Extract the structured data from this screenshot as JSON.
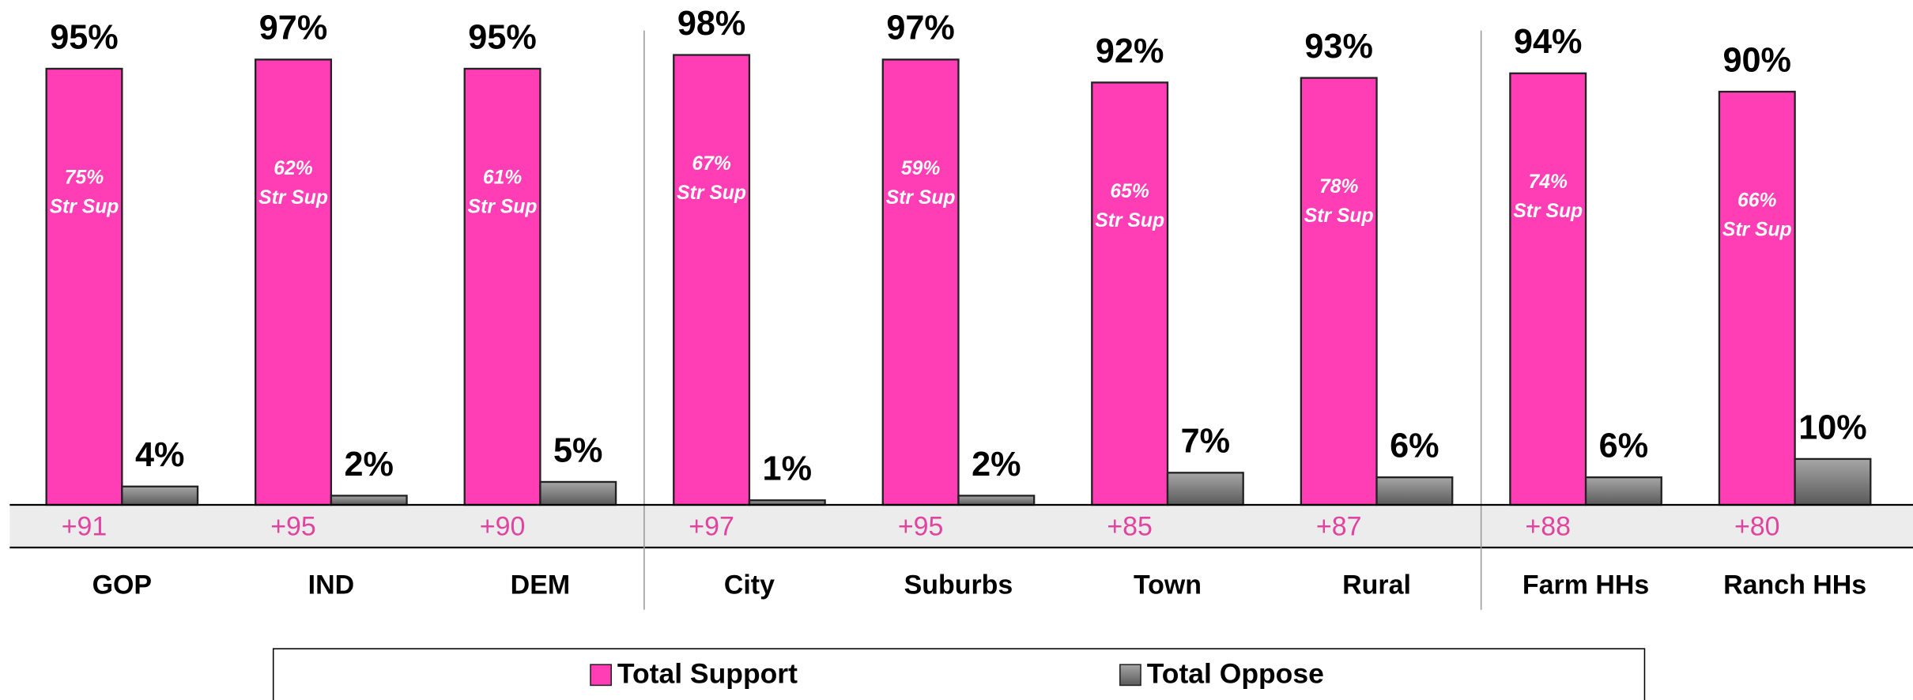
{
  "chart_data": {
    "type": "bar",
    "categories": [
      "GOP",
      "IND",
      "DEM",
      "City",
      "Suburbs",
      "Town",
      "Rural",
      "Farm HHs",
      "Ranch HHs"
    ],
    "series": [
      {
        "name": "Total Support",
        "color": "#ff3eb5",
        "values": [
          95,
          97,
          95,
          98,
          97,
          92,
          93,
          94,
          90
        ],
        "value_labels": [
          "95%",
          "97%",
          "95%",
          "98%",
          "97%",
          "92%",
          "93%",
          "94%",
          "90%"
        ]
      },
      {
        "name": "Total Oppose",
        "color": "#808080",
        "values": [
          4,
          2,
          5,
          1,
          2,
          7,
          6,
          6,
          10
        ],
        "value_labels": [
          "4%",
          "2%",
          "5%",
          "1%",
          "2%",
          "7%",
          "6%",
          "6%",
          "10%"
        ]
      }
    ],
    "strong_support": {
      "name": "Str Sup",
      "values": [
        75,
        62,
        61,
        67,
        59,
        65,
        78,
        74,
        66
      ],
      "value_labels": [
        "75%",
        "62%",
        "61%",
        "67%",
        "59%",
        "65%",
        "78%",
        "74%",
        "66%"
      ]
    },
    "net": {
      "values": [
        91,
        95,
        90,
        97,
        95,
        85,
        87,
        88,
        80
      ],
      "value_labels": [
        "+91",
        "+95",
        "+90",
        "+97",
        "+95",
        "+85",
        "+87",
        "+88",
        "+80"
      ]
    },
    "ylim": [
      0,
      100
    ]
  }
}
